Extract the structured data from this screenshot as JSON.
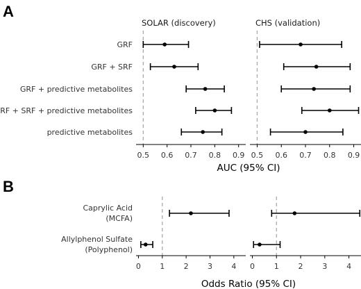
{
  "figure": {
    "panel_a_letter": "A",
    "panel_b_letter": "B"
  },
  "chart_data": [
    {
      "type": "forest",
      "panel": "A",
      "xlabel": "AUC (95% CI)",
      "xlim": [
        0.47,
        0.93
      ],
      "xticks": [
        0.5,
        0.6,
        0.7,
        0.8,
        0.9
      ],
      "xtick_labels": [
        "0.5",
        "0.6",
        "0.7",
        "0.8",
        "0.9"
      ],
      "reference_line": 0.5,
      "categories": [
        "GRF",
        "GRF + SRF",
        "GRF + predictive metabolites",
        "GRF + SRF + predictive metabolites",
        "predictive metabolites"
      ],
      "facets": [
        {
          "title": "SOLAR (discovery)",
          "estimates": [
            0.59,
            0.63,
            0.76,
            0.8,
            0.75
          ],
          "lower": [
            0.5,
            0.53,
            0.68,
            0.72,
            0.66
          ],
          "upper": [
            0.69,
            0.73,
            0.84,
            0.87,
            0.83
          ]
        },
        {
          "title": "CHS (validation)",
          "estimates": [
            0.68,
            0.745,
            0.735,
            0.8,
            0.7
          ],
          "lower": [
            0.51,
            0.61,
            0.6,
            0.685,
            0.555
          ],
          "upper": [
            0.85,
            0.885,
            0.885,
            0.92,
            0.855
          ]
        }
      ]
    },
    {
      "type": "forest",
      "panel": "B",
      "xlabel": "Odds Ratio (95% CI)",
      "xlim": [
        -0.1,
        4.5
      ],
      "xticks": [
        0,
        1,
        2,
        3,
        4
      ],
      "xtick_labels": [
        "0",
        "1",
        "2",
        "3",
        "4"
      ],
      "reference_line": 1,
      "categories": [
        [
          "Caprylic Acid",
          "(MCFA)"
        ],
        [
          "Allylphenol Sulfate",
          "(Polyphenol)"
        ]
      ],
      "facets": [
        {
          "title": "",
          "estimates": [
            2.2,
            0.3
          ],
          "lower": [
            1.3,
            0.1
          ],
          "upper": [
            3.8,
            0.6
          ]
        },
        {
          "title": "",
          "estimates": [
            1.75,
            0.3
          ],
          "lower": [
            0.8,
            0.05
          ],
          "upper": [
            4.45,
            1.15
          ]
        }
      ]
    }
  ]
}
